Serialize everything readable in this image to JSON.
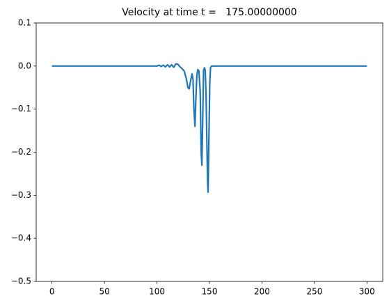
{
  "chart_data": {
    "type": "line",
    "title": "Velocity at time t =   175.00000000",
    "x": [
      0,
      100,
      102,
      104,
      106,
      108,
      110,
      112,
      114,
      116,
      118,
      120,
      122,
      124,
      126,
      128,
      129.5,
      130.7,
      132,
      133.4,
      134.3,
      135.2,
      136.2,
      137,
      138,
      139,
      140,
      141.2,
      142.1,
      142.8,
      143.6,
      144.4,
      145.2,
      146,
      146.8,
      147.5,
      148.2,
      148.7,
      149.4,
      150.3,
      151,
      152,
      160,
      200,
      250,
      300
    ],
    "values": [
      0,
      0,
      0.002,
      -0.001,
      0.002,
      -0.002,
      0.003,
      -0.002,
      0.003,
      -0.003,
      0.005,
      0.004,
      -0.002,
      -0.006,
      -0.012,
      -0.03,
      -0.05,
      -0.053,
      -0.035,
      -0.018,
      -0.03,
      -0.1,
      -0.14,
      -0.08,
      -0.02,
      -0.008,
      -0.012,
      -0.06,
      -0.2,
      -0.23,
      -0.12,
      -0.01,
      -0.004,
      -0.01,
      -0.07,
      -0.17,
      -0.27,
      -0.293,
      -0.18,
      -0.04,
      -0.004,
      0,
      0,
      0,
      0,
      0
    ],
    "color": "#1f77b4",
    "xlim": [
      -15,
      315
    ],
    "xticks": [
      0,
      50,
      100,
      150,
      200,
      250,
      300
    ],
    "ylim": [
      -0.5,
      0.1
    ],
    "yticks": [
      {
        "value": -0.5,
        "label": "−0.5"
      },
      {
        "value": -0.4,
        "label": "−0.4"
      },
      {
        "value": -0.3,
        "label": "−0.3"
      },
      {
        "value": -0.2,
        "label": "−0.2"
      },
      {
        "value": -0.1,
        "label": "−0.1"
      },
      {
        "value": 0,
        "label": "0.0"
      },
      0.1
    ],
    "grid": false
  }
}
